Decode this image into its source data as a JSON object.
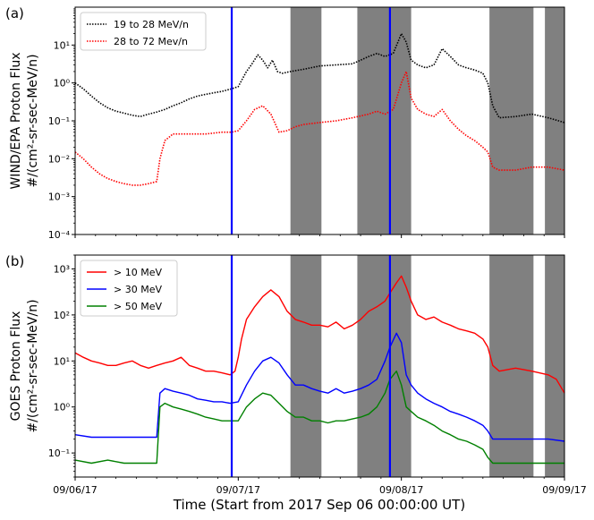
{
  "figure": {
    "xlabel": "Time (Start from 2017 Sep 06 00:00:00 UT)",
    "xtick_labels": [
      "09/06/17",
      "09/07/17",
      "09/08/17",
      "09/09/17"
    ]
  },
  "chart_data": [
    {
      "type": "line",
      "panel_label": "(a)",
      "ylabel_line1": "WIND/EPA Proton Flux",
      "ylabel_line2": "#/(cm²-sr-sec-MeV/n)",
      "yscale": "log",
      "ylim": [
        0.0001,
        100
      ],
      "xlim": [
        0,
        3
      ],
      "x_unit": "days since 2017-09-06 00:00 UT",
      "y_tick_labels": [
        "10⁻⁴",
        "10⁻³",
        "10⁻²",
        "10⁻¹",
        "10⁰",
        "10¹"
      ],
      "y_tick_values": [
        0.0001,
        0.001,
        0.01,
        0.1,
        1,
        10
      ],
      "legend_position": "top-left",
      "shaded_intervals": [
        [
          1.32,
          1.51
        ],
        [
          1.73,
          2.06
        ],
        [
          2.54,
          2.81
        ],
        [
          2.88,
          3.0
        ]
      ],
      "vertical_lines": [
        0.96,
        1.93
      ],
      "series": [
        {
          "name": "19 to 28 MeV/n",
          "color": "#000000",
          "style": "dotted",
          "x": [
            0,
            0.05,
            0.1,
            0.15,
            0.2,
            0.25,
            0.3,
            0.35,
            0.4,
            0.45,
            0.5,
            0.55,
            0.6,
            0.65,
            0.7,
            0.75,
            0.8,
            0.85,
            0.9,
            0.96,
            1.0,
            1.05,
            1.08,
            1.12,
            1.15,
            1.18,
            1.21,
            1.24,
            1.27,
            1.32,
            1.4,
            1.5,
            1.6,
            1.7,
            1.75,
            1.8,
            1.85,
            1.9,
            1.95,
            2.0,
            2.03,
            2.06,
            2.1,
            2.15,
            2.2,
            2.25,
            2.3,
            2.35,
            2.4,
            2.45,
            2.5,
            2.53,
            2.56,
            2.6,
            2.7,
            2.8,
            2.9,
            3.0
          ],
          "y": [
            1.0,
            0.7,
            0.45,
            0.3,
            0.22,
            0.18,
            0.16,
            0.14,
            0.13,
            0.15,
            0.17,
            0.2,
            0.25,
            0.3,
            0.38,
            0.45,
            0.5,
            0.55,
            0.6,
            0.7,
            0.8,
            2.0,
            3.0,
            5.5,
            4.0,
            2.5,
            4.0,
            2.0,
            1.8,
            2.0,
            2.3,
            2.8,
            3.0,
            3.2,
            4.0,
            5.0,
            6.0,
            5.0,
            6.0,
            20,
            12,
            4.0,
            3.0,
            2.5,
            3.0,
            8.0,
            5.0,
            3.0,
            2.5,
            2.2,
            1.8,
            1.0,
            0.25,
            0.12,
            0.13,
            0.15,
            0.12,
            0.09
          ]
        },
        {
          "name": "28 to 72 Mev/n",
          "color": "#ff0000",
          "style": "dotted",
          "x": [
            0,
            0.05,
            0.1,
            0.15,
            0.2,
            0.25,
            0.3,
            0.35,
            0.4,
            0.45,
            0.5,
            0.52,
            0.55,
            0.6,
            0.7,
            0.8,
            0.9,
            0.96,
            1.0,
            1.05,
            1.1,
            1.15,
            1.2,
            1.25,
            1.3,
            1.35,
            1.4,
            1.5,
            1.6,
            1.7,
            1.8,
            1.85,
            1.9,
            1.95,
            2.0,
            2.03,
            2.06,
            2.1,
            2.15,
            2.2,
            2.25,
            2.3,
            2.35,
            2.4,
            2.45,
            2.5,
            2.53,
            2.56,
            2.6,
            2.7,
            2.8,
            2.9,
            3.0
          ],
          "y": [
            0.015,
            0.01,
            0.006,
            0.004,
            0.003,
            0.0025,
            0.0022,
            0.002,
            0.002,
            0.0022,
            0.0025,
            0.01,
            0.03,
            0.045,
            0.045,
            0.045,
            0.05,
            0.05,
            0.055,
            0.1,
            0.2,
            0.25,
            0.15,
            0.05,
            0.055,
            0.07,
            0.08,
            0.09,
            0.1,
            0.12,
            0.15,
            0.18,
            0.15,
            0.2,
            1.0,
            2.0,
            0.4,
            0.2,
            0.15,
            0.13,
            0.2,
            0.1,
            0.06,
            0.04,
            0.03,
            0.02,
            0.015,
            0.006,
            0.005,
            0.005,
            0.006,
            0.006,
            0.005
          ]
        }
      ]
    },
    {
      "type": "line",
      "panel_label": "(b)",
      "ylabel_line1": "GOES Proton Flux",
      "ylabel_line2": "#/(cm²-sr-sec-MeV/n)",
      "yscale": "log",
      "ylim": [
        0.03,
        2000
      ],
      "xlim": [
        0,
        3
      ],
      "x_unit": "days since 2017-09-06 00:00 UT",
      "y_tick_labels": [
        "10⁻¹",
        "10⁰",
        "10¹",
        "10²",
        "10³"
      ],
      "y_tick_values": [
        0.1,
        1,
        10,
        100,
        1000
      ],
      "legend_position": "top-left",
      "shaded_intervals": [
        [
          1.32,
          1.51
        ],
        [
          1.73,
          2.06
        ],
        [
          2.54,
          2.81
        ],
        [
          2.88,
          3.0
        ]
      ],
      "vertical_lines": [
        0.96,
        1.93
      ],
      "series": [
        {
          "name": "> 10 MeV",
          "color": "#ff0000",
          "style": "solid",
          "x": [
            0,
            0.05,
            0.1,
            0.15,
            0.2,
            0.25,
            0.3,
            0.35,
            0.4,
            0.45,
            0.5,
            0.55,
            0.6,
            0.65,
            0.7,
            0.75,
            0.8,
            0.85,
            0.9,
            0.95,
            0.98,
            1.0,
            1.02,
            1.05,
            1.1,
            1.15,
            1.2,
            1.25,
            1.3,
            1.35,
            1.4,
            1.45,
            1.5,
            1.55,
            1.6,
            1.65,
            1.7,
            1.75,
            1.8,
            1.85,
            1.9,
            1.93,
            1.97,
            2.0,
            2.03,
            2.06,
            2.1,
            2.15,
            2.2,
            2.25,
            2.3,
            2.35,
            2.4,
            2.45,
            2.5,
            2.53,
            2.56,
            2.6,
            2.7,
            2.8,
            2.9,
            2.95,
            3.0
          ],
          "y": [
            15,
            12,
            10,
            9,
            8,
            8,
            9,
            10,
            8,
            7,
            8,
            9,
            10,
            12,
            8,
            7,
            6,
            6,
            5.5,
            5,
            6,
            12,
            30,
            80,
            150,
            250,
            350,
            250,
            120,
            80,
            70,
            60,
            60,
            55,
            70,
            50,
            60,
            80,
            120,
            150,
            200,
            300,
            500,
            700,
            400,
            200,
            100,
            80,
            90,
            70,
            60,
            50,
            45,
            40,
            30,
            20,
            8,
            6,
            7,
            6,
            5,
            4,
            2
          ]
        },
        {
          "name": "> 30 MeV",
          "color": "#0000ff",
          "style": "solid",
          "x": [
            0,
            0.1,
            0.2,
            0.3,
            0.4,
            0.5,
            0.52,
            0.55,
            0.6,
            0.65,
            0.7,
            0.75,
            0.8,
            0.85,
            0.9,
            0.95,
            1.0,
            1.05,
            1.1,
            1.15,
            1.2,
            1.25,
            1.3,
            1.35,
            1.4,
            1.45,
            1.5,
            1.55,
            1.6,
            1.65,
            1.7,
            1.75,
            1.8,
            1.85,
            1.9,
            1.93,
            1.97,
            2.0,
            2.03,
            2.06,
            2.1,
            2.15,
            2.2,
            2.25,
            2.3,
            2.35,
            2.4,
            2.45,
            2.5,
            2.53,
            2.56,
            2.6,
            2.7,
            2.8,
            2.9,
            3.0
          ],
          "y": [
            0.25,
            0.22,
            0.22,
            0.22,
            0.22,
            0.22,
            2.0,
            2.5,
            2.2,
            2.0,
            1.8,
            1.5,
            1.4,
            1.3,
            1.3,
            1.2,
            1.3,
            3.0,
            6.0,
            10,
            12,
            9,
            5.0,
            3.0,
            3.0,
            2.5,
            2.2,
            2.0,
            2.5,
            2.0,
            2.2,
            2.5,
            3.0,
            4.0,
            10,
            20,
            40,
            25,
            5.0,
            3.0,
            2.0,
            1.5,
            1.2,
            1.0,
            0.8,
            0.7,
            0.6,
            0.5,
            0.4,
            0.3,
            0.2,
            0.2,
            0.2,
            0.2,
            0.2,
            0.18
          ]
        },
        {
          "name": "> 50 MeV",
          "color": "#008000",
          "style": "solid",
          "x": [
            0,
            0.1,
            0.2,
            0.3,
            0.4,
            0.5,
            0.52,
            0.55,
            0.6,
            0.65,
            0.7,
            0.75,
            0.8,
            0.85,
            0.9,
            0.95,
            1.0,
            1.05,
            1.1,
            1.15,
            1.2,
            1.25,
            1.3,
            1.35,
            1.4,
            1.45,
            1.5,
            1.55,
            1.6,
            1.65,
            1.7,
            1.75,
            1.8,
            1.85,
            1.9,
            1.93,
            1.97,
            2.0,
            2.03,
            2.06,
            2.1,
            2.15,
            2.2,
            2.25,
            2.3,
            2.35,
            2.4,
            2.45,
            2.5,
            2.53,
            2.56,
            2.6,
            2.7,
            2.8,
            2.9,
            3.0
          ],
          "y": [
            0.07,
            0.06,
            0.07,
            0.06,
            0.06,
            0.06,
            1.0,
            1.2,
            1.0,
            0.9,
            0.8,
            0.7,
            0.6,
            0.55,
            0.5,
            0.5,
            0.5,
            1.0,
            1.5,
            2.0,
            1.8,
            1.2,
            0.8,
            0.6,
            0.6,
            0.5,
            0.5,
            0.45,
            0.5,
            0.5,
            0.55,
            0.6,
            0.7,
            1.0,
            2.0,
            4.0,
            6.0,
            3.0,
            1.0,
            0.8,
            0.6,
            0.5,
            0.4,
            0.3,
            0.25,
            0.2,
            0.18,
            0.15,
            0.12,
            0.08,
            0.06,
            0.06,
            0.06,
            0.06,
            0.06,
            0.06
          ]
        }
      ]
    }
  ]
}
